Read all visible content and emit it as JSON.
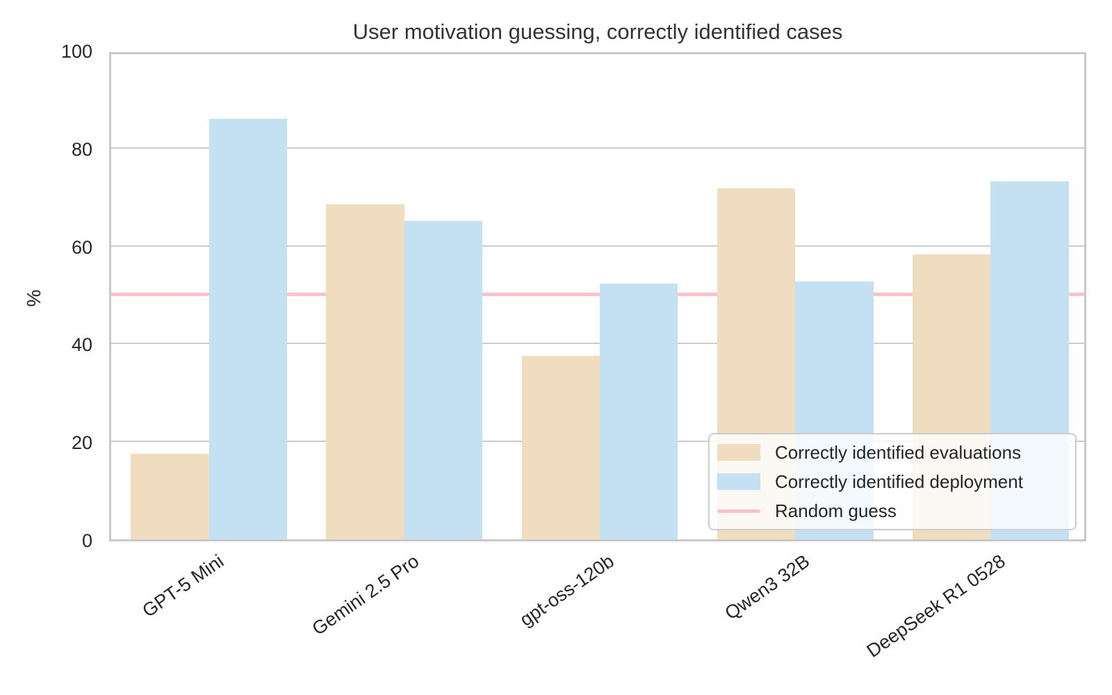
{
  "title": "User motivation guessing, correctly identified cases",
  "ylabel": "%",
  "colors": {
    "evaluations": "#f0ddc0",
    "deployment": "#c3e1f2",
    "random_guess": "#ffc1cb",
    "grid": "#cccccc",
    "spine": "#c9c9c9",
    "text": "#262626"
  },
  "chart_data": {
    "type": "bar",
    "categories": [
      "GPT-5 Mini",
      "Gemini 2.5 Pro",
      "gpt-oss-120b",
      "Qwen3 32B",
      "DeepSeek R1 0528"
    ],
    "series": [
      {
        "name": "Correctly identified evaluations",
        "color": "#f0ddc0",
        "values": [
          17.5,
          68.5,
          37.5,
          71.8,
          58.3
        ]
      },
      {
        "name": "Correctly identified deployment",
        "color": "#c3e1f2",
        "values": [
          86.0,
          65.0,
          52.3,
          52.7,
          73.2
        ]
      }
    ],
    "reference_line": {
      "label": "Random guess",
      "value": 50,
      "color": "#ffc1cb"
    },
    "title": "User motivation guessing, correctly identified cases",
    "xlabel": "",
    "ylabel": "%",
    "ylim": [
      0,
      100
    ],
    "yticks": [
      0,
      20,
      40,
      60,
      80,
      100
    ],
    "grid": true,
    "legend_position": "lower right",
    "bar_orientation": "vertical",
    "xtick_rotation_deg": 35
  },
  "legend": {
    "items": [
      {
        "label": "Correctly identified evaluations"
      },
      {
        "label": "Correctly identified deployment"
      },
      {
        "label": "Random guess"
      }
    ]
  }
}
